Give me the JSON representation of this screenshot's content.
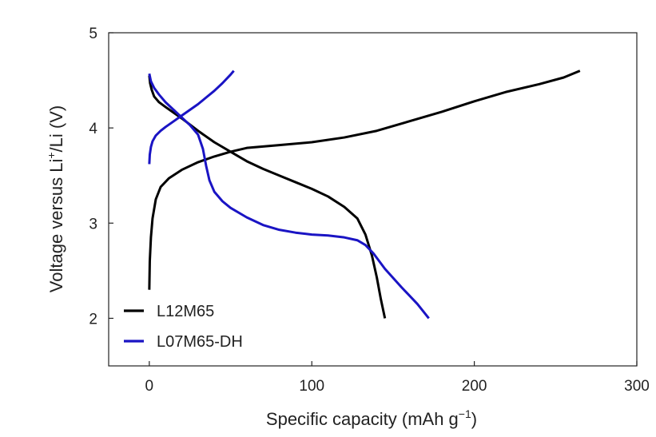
{
  "chart_data": {
    "type": "line",
    "title": "",
    "xlabel": "Specific capacity (mAh g",
    "xlabel_sup": "−1",
    "xlabel_end": ")",
    "ylabel_pre": "Voltage versus Li",
    "ylabel_sup": "+",
    "ylabel_post": "/Li (V)",
    "xlim": [
      -25,
      300
    ],
    "ylim": [
      1.5,
      5
    ],
    "xticks": [
      0,
      100,
      200,
      300
    ],
    "yticks": [
      2,
      3,
      4,
      5
    ],
    "xtick_labels": [
      "0",
      "100",
      "200",
      "300"
    ],
    "ytick_labels": [
      "2",
      "3",
      "4",
      "5"
    ],
    "legend_position": "bottom-left",
    "series": [
      {
        "name": "L12M65",
        "color": "#000000",
        "curves": [
          {
            "role": "charge",
            "x": [
              0,
              0.3,
              1,
              2,
              4,
              7,
              12,
              20,
              30,
              40,
              50,
              60,
              80,
              100,
              120,
              140,
              160,
              180,
              200,
              220,
              240,
              255,
              265
            ],
            "y": [
              2.3,
              2.6,
              2.85,
              3.05,
              3.25,
              3.38,
              3.47,
              3.56,
              3.64,
              3.7,
              3.75,
              3.79,
              3.82,
              3.85,
              3.9,
              3.97,
              4.07,
              4.17,
              4.28,
              4.38,
              4.46,
              4.53,
              4.6
            ]
          },
          {
            "role": "discharge",
            "x": [
              0,
              0.5,
              1.5,
              3,
              6,
              10,
              20,
              30,
              40,
              50,
              60,
              70,
              80,
              90,
              100,
              110,
              120,
              128,
              133,
              137,
              140,
              142.5,
              145
            ],
            "y": [
              4.55,
              4.47,
              4.4,
              4.33,
              4.27,
              4.22,
              4.1,
              3.97,
              3.85,
              3.75,
              3.65,
              3.57,
              3.5,
              3.43,
              3.36,
              3.28,
              3.17,
              3.05,
              2.88,
              2.66,
              2.43,
              2.2,
              2.0
            ]
          }
        ]
      },
      {
        "name": "L07M65-DH",
        "color": "#1a14c4",
        "curves": [
          {
            "role": "charge",
            "x": [
              0,
              0.3,
              1,
              2,
              4,
              7,
              10,
              15,
              20,
              25,
              30,
              35,
              40,
              45,
              50,
              52
            ],
            "y": [
              3.62,
              3.72,
              3.8,
              3.86,
              3.92,
              3.97,
              4.01,
              4.07,
              4.13,
              4.19,
              4.25,
              4.32,
              4.39,
              4.47,
              4.56,
              4.6
            ]
          },
          {
            "role": "discharge",
            "x": [
              0,
              1,
              3,
              6,
              10,
              15,
              20,
              25,
              30,
              33,
              35,
              37,
              40,
              45,
              50,
              60,
              70,
              80,
              90,
              100,
              110,
              120,
              128,
              133,
              138,
              145,
              155,
              165,
              172
            ],
            "y": [
              4.57,
              4.49,
              4.42,
              4.35,
              4.27,
              4.19,
              4.11,
              4.03,
              3.93,
              3.78,
              3.6,
              3.45,
              3.33,
              3.23,
              3.16,
              3.06,
              2.98,
              2.93,
              2.9,
              2.88,
              2.87,
              2.85,
              2.82,
              2.77,
              2.68,
              2.52,
              2.33,
              2.15,
              2.0
            ]
          }
        ]
      }
    ]
  }
}
